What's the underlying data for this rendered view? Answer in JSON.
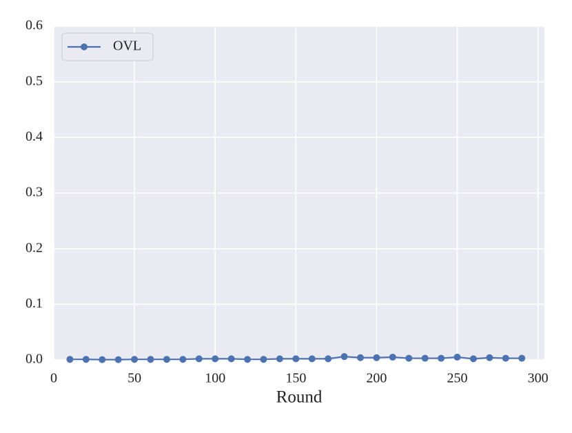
{
  "chart_data": {
    "type": "line",
    "x": [
      10,
      20,
      30,
      40,
      50,
      60,
      70,
      80,
      90,
      100,
      110,
      120,
      130,
      140,
      150,
      160,
      170,
      180,
      190,
      200,
      210,
      220,
      230,
      240,
      250,
      260,
      270,
      280,
      290
    ],
    "xlabel": "Round",
    "series": [
      {
        "name": "OVL",
        "color": "#4c72b0",
        "values": [
          0.001,
          0.001,
          0.0005,
          0.0005,
          0.001,
          0.001,
          0.001,
          0.001,
          0.002,
          0.002,
          0.002,
          0.001,
          0.001,
          0.002,
          0.002,
          0.002,
          0.002,
          0.006,
          0.004,
          0.004,
          0.005,
          0.003,
          0.003,
          0.003,
          0.005,
          0.002,
          0.004,
          0.003,
          0.003
        ]
      }
    ],
    "xlim": [
      0,
      304
    ],
    "ylim": [
      0,
      0.6
    ],
    "xticks": [
      0,
      50,
      100,
      150,
      200,
      250,
      300
    ],
    "yticks": [
      {
        "value": 0,
        "label": "0.0"
      },
      0.1,
      0.2,
      0.3,
      0.4,
      0.5,
      0.6
    ],
    "grid": true,
    "legend": "upper left"
  }
}
